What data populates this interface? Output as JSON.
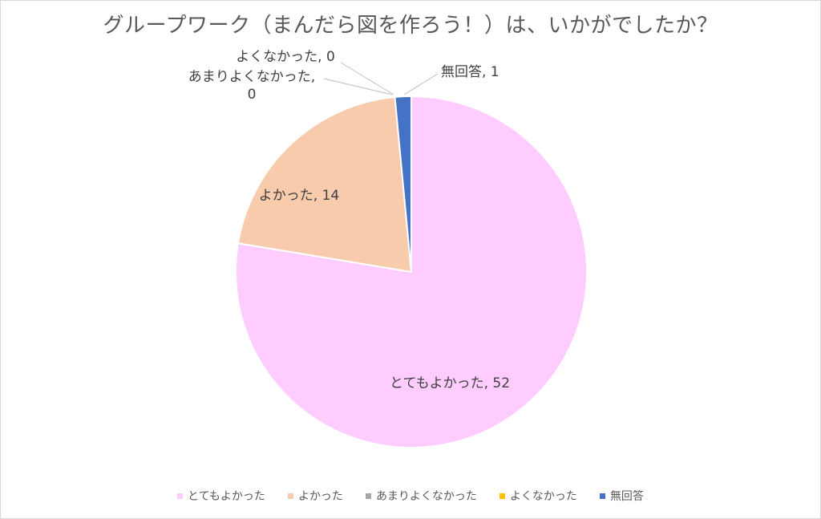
{
  "chart_data": {
    "type": "pie",
    "title": "グループワーク（まんだら図を作ろう！）は、いかがでしたか？",
    "categories": [
      "とてもよかった",
      "よかった",
      "あまりよくなかった",
      "よくなかった",
      "無回答"
    ],
    "values": [
      52,
      14,
      0,
      0,
      1
    ],
    "colors": [
      "#ffccff",
      "#f8cbad",
      "#a5a5a5",
      "#ffc000",
      "#4472c4"
    ],
    "data_labels": [
      "とてもよかった, 52",
      "よかった, 14",
      "あまりよくなかった, 0",
      "よくなかった, 0",
      "無回答, 1"
    ],
    "legend_position": "bottom"
  }
}
